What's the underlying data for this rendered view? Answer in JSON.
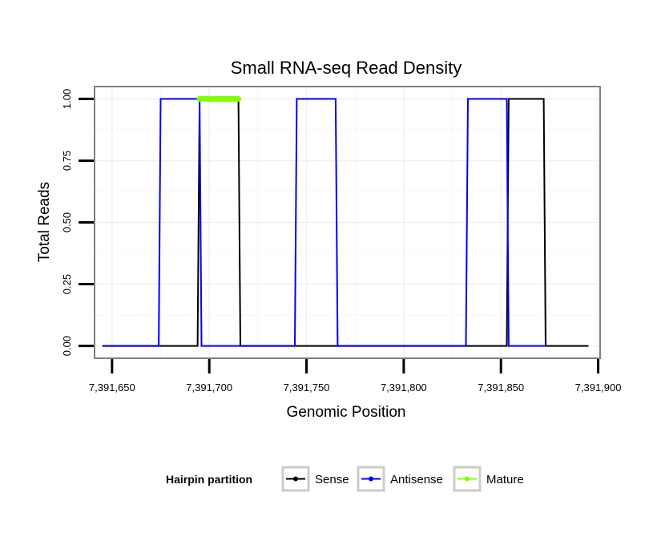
{
  "chart_data": {
    "type": "line",
    "title": "Small RNA-seq Read Density",
    "xlabel": "Genomic Position",
    "ylabel": "Total Reads",
    "xlim": [
      7391641,
      7391901
    ],
    "ylim": [
      -0.05,
      1.05
    ],
    "x_ticks": [
      7391650,
      7391700,
      7391750,
      7391800,
      7391850,
      7391900
    ],
    "x_tick_labels": [
      "7,391,650",
      "7,391,700",
      "7,391,750",
      "7,391,800",
      "7,391,850",
      "7,391,900"
    ],
    "y_ticks": [
      0,
      0.25,
      0.5,
      0.75,
      1
    ],
    "y_tick_labels": [
      "0.00",
      "0.25",
      "0.50",
      "0.75",
      "1.00"
    ],
    "grid": true,
    "legend": {
      "title": "Hairpin partition",
      "position": "bottom",
      "entries": [
        "Sense",
        "Antisense",
        "Mature"
      ]
    },
    "series": [
      {
        "name": "Sense",
        "color": "#000000",
        "x": [
          7391645,
          7391694,
          7391695,
          7391715,
          7391716,
          7391853,
          7391854,
          7391872,
          7391873,
          7391895
        ],
        "y": [
          0,
          0,
          1,
          1,
          0,
          0,
          1,
          1,
          0,
          0
        ]
      },
      {
        "name": "Antisense",
        "color": "#0000ff",
        "x": [
          7391645,
          7391674,
          7391675,
          7391695,
          7391696,
          7391744,
          7391745,
          7391765,
          7391766,
          7391832,
          7391833,
          7391853,
          7391854,
          7391873
        ],
        "y": [
          0,
          0,
          1,
          1,
          0,
          0,
          1,
          1,
          0,
          0,
          1,
          1,
          0,
          0
        ]
      },
      {
        "name": "Mature",
        "color": "#7fff00",
        "x": [
          7391695,
          7391715
        ],
        "y": [
          1,
          1
        ]
      }
    ]
  }
}
